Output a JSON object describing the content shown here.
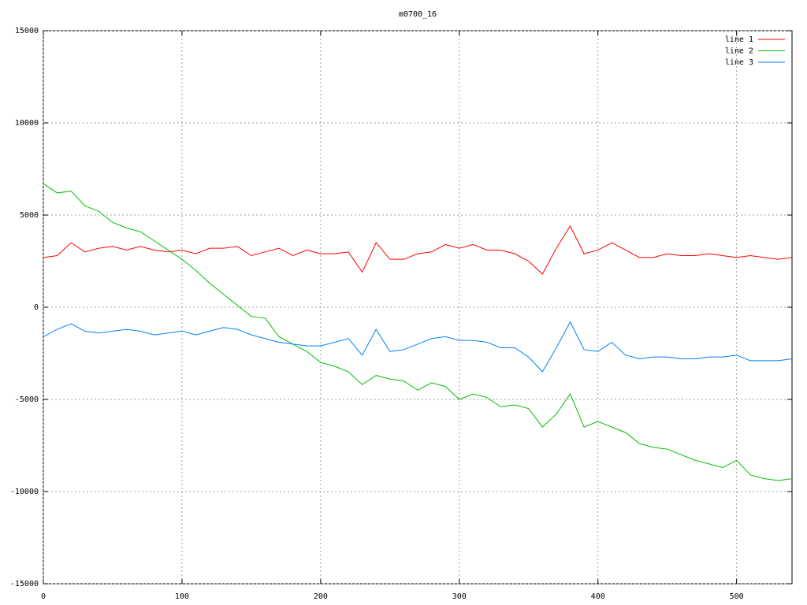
{
  "chart_data": {
    "type": "line",
    "title": "m0700_16",
    "x": [
      0,
      10,
      20,
      30,
      40,
      50,
      60,
      70,
      80,
      90,
      100,
      110,
      120,
      130,
      140,
      150,
      160,
      170,
      180,
      190,
      200,
      210,
      220,
      230,
      240,
      250,
      260,
      270,
      280,
      290,
      300,
      310,
      320,
      330,
      340,
      350,
      360,
      370,
      380,
      390,
      400,
      410,
      420,
      430,
      440,
      450,
      460,
      470,
      480,
      490,
      500,
      510,
      520,
      530,
      540
    ],
    "series": [
      {
        "name": "line 1",
        "color": "#ff0000",
        "values": [
          2700,
          2800,
          3500,
          3000,
          3200,
          3300,
          3100,
          3300,
          3100,
          3000,
          3100,
          2900,
          3200,
          3200,
          3300,
          2800,
          3000,
          3200,
          2800,
          3100,
          2900,
          2900,
          3000,
          1900,
          3500,
          2600,
          2600,
          2900,
          3000,
          3400,
          3200,
          3400,
          3100,
          3100,
          2900,
          2500,
          1800,
          3200,
          4400,
          2900,
          3100,
          3500,
          3100,
          2700,
          2700,
          2900,
          2800,
          2800,
          2900,
          2800,
          2700,
          2800,
          2700,
          2600,
          2700
        ]
      },
      {
        "name": "line 2",
        "color": "#00c000",
        "values": [
          6700,
          6200,
          6300,
          5500,
          5200,
          4600,
          4300,
          4100,
          3600,
          3100,
          2600,
          2000,
          1300,
          700,
          100,
          -500,
          -600,
          -1600,
          -2000,
          -2400,
          -3000,
          -3200,
          -3500,
          -4200,
          -3700,
          -3900,
          -4000,
          -4500,
          -4100,
          -4300,
          -5000,
          -4700,
          -4900,
          -5400,
          -5300,
          -5500,
          -6500,
          -5800,
          -4700,
          -6500,
          -6200,
          -6500,
          -6800,
          -7400,
          -7600,
          -7700,
          -8000,
          -8300,
          -8500,
          -8700,
          -8300,
          -9100,
          -9300,
          -9400,
          -9300
        ]
      },
      {
        "name": "line 3",
        "color": "#0080ff",
        "values": [
          -1600,
          -1200,
          -900,
          -1300,
          -1400,
          -1300,
          -1200,
          -1300,
          -1500,
          -1400,
          -1300,
          -1500,
          -1300,
          -1100,
          -1200,
          -1500,
          -1700,
          -1900,
          -2000,
          -2100,
          -2100,
          -1900,
          -1700,
          -2600,
          -1200,
          -2400,
          -2300,
          -2000,
          -1700,
          -1600,
          -1800,
          -1800,
          -1900,
          -2200,
          -2200,
          -2700,
          -3500,
          -2200,
          -800,
          -2300,
          -2400,
          -1900,
          -2600,
          -2800,
          -2700,
          -2700,
          -2800,
          -2800,
          -2700,
          -2700,
          -2600,
          -2900,
          -2900,
          -2900,
          -2800
        ]
      }
    ],
    "xlim": [
      0,
      540
    ],
    "xticks": [
      0,
      100,
      200,
      300,
      400,
      500
    ],
    "ylim": [
      -15000,
      15000
    ],
    "yticks": [
      -15000,
      -10000,
      -5000,
      0,
      5000,
      10000,
      15000
    ],
    "grid": true,
    "legend": "top-right"
  }
}
